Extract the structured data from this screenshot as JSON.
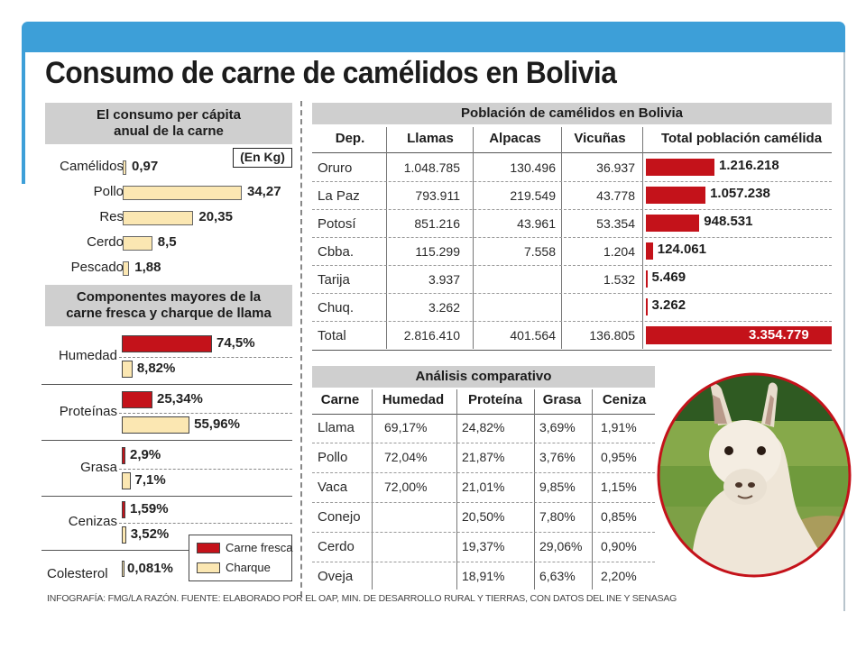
{
  "title": "Consumo de carne de camélidos en Bolivia",
  "per_capita": {
    "header_line1": "El consumo per cápita",
    "header_line2": "anual de la carne",
    "unit": "(En Kg)",
    "rows": [
      {
        "label": "Camélidos",
        "value": "0,97",
        "num": 0.97
      },
      {
        "label": "Pollo",
        "value": "34,27",
        "num": 34.27
      },
      {
        "label": "Res",
        "value": "20,35",
        "num": 20.35
      },
      {
        "label": "Cerdo",
        "value": "8,5",
        "num": 8.5
      },
      {
        "label": "Pescado",
        "value": "1,88",
        "num": 1.88
      }
    ]
  },
  "components": {
    "header_line1": "Componentes mayores de la",
    "header_line2": "carne fresca y charque de llama",
    "rows": [
      {
        "label": "Humedad",
        "fresca": "74,5%",
        "fresca_num": 74.5,
        "charque": "8,82%",
        "charque_num": 8.82
      },
      {
        "label": "Proteínas",
        "fresca": "25,34%",
        "fresca_num": 25.34,
        "charque": "55,96%",
        "charque_num": 55.96
      },
      {
        "label": "Grasa",
        "fresca": "2,9%",
        "fresca_num": 2.9,
        "charque": "7,1%",
        "charque_num": 7.1
      },
      {
        "label": "Cenizas",
        "fresca": "1,59%",
        "fresca_num": 1.59,
        "charque": "3,52%",
        "charque_num": 3.52
      },
      {
        "label": "Colesterol",
        "value": "0,081%"
      }
    ],
    "legend": {
      "fresca": "Carne fresca",
      "charque": "Charque"
    },
    "colors": {
      "fresca": "#c4121a",
      "charque": "#fbe7b2"
    }
  },
  "population": {
    "header": "Población de camélidos en Bolivia",
    "columns": [
      "Dep.",
      "Llamas",
      "Alpacas",
      "Vicuñas",
      "Total población camélida"
    ],
    "rows": [
      {
        "dep": "Oruro",
        "llamas": "1.048.785",
        "alpacas": "130.496",
        "vicunas": "36.937",
        "total": "1.216.218",
        "total_num": 1216218
      },
      {
        "dep": "La Paz",
        "llamas": "793.911",
        "alpacas": "219.549",
        "vicunas": "43.778",
        "total": "1.057.238",
        "total_num": 1057238
      },
      {
        "dep": "Potosí",
        "llamas": "851.216",
        "alpacas": "43.961",
        "vicunas": "53.354",
        "total": "948.531",
        "total_num": 948531
      },
      {
        "dep": "Cbba.",
        "llamas": "115.299",
        "alpacas": "7.558",
        "vicunas": "1.204",
        "total": "124.061",
        "total_num": 124061
      },
      {
        "dep": "Tarija",
        "llamas": "3.937",
        "alpacas": "",
        "vicunas": "1.532",
        "total": "5.469",
        "total_num": 5469
      },
      {
        "dep": "Chuq.",
        "llamas": "3.262",
        "alpacas": "",
        "vicunas": "",
        "total": "3.262",
        "total_num": 3262
      }
    ],
    "total_row": {
      "dep": "Total",
      "llamas": "2.816.410",
      "alpacas": "401.564",
      "vicunas": "136.805",
      "total": "3.354.779",
      "total_num": 3354779
    }
  },
  "comparative": {
    "header": "Análisis comparativo",
    "columns": [
      "Carne",
      "Humedad",
      "Proteína",
      "Grasa",
      "Ceniza"
    ],
    "rows": [
      [
        "Llama",
        "69,17%",
        "24,82%",
        "3,69%",
        "1,91%"
      ],
      [
        "Pollo",
        "72,04%",
        "21,87%",
        "3,76%",
        "0,95%"
      ],
      [
        "Vaca",
        "72,00%",
        "21,01%",
        "9,85%",
        "1,15%"
      ],
      [
        "Conejo",
        "",
        "20,50%",
        "7,80%",
        "0,85%"
      ],
      [
        "Cerdo",
        "",
        "19,37%",
        "29,06%",
        "0,90%"
      ],
      [
        "Oveja",
        "",
        "18,91%",
        "6,63%",
        "2,20%"
      ]
    ]
  },
  "footer": "INFOGRAFÍA: FMG/LA RAZÓN. FUENTE: ELABORADO POR EL OAP, MIN. DE DESARROLLO RURAL Y TIERRAS, CON DATOS DEL INE Y SENASAG",
  "chart_data": [
    {
      "type": "bar",
      "title": "El consumo per cápita anual de la carne",
      "ylabel": "(En Kg)",
      "categories": [
        "Camélidos",
        "Pollo",
        "Res",
        "Cerdo",
        "Pescado"
      ],
      "values": [
        0.97,
        34.27,
        20.35,
        8.5,
        1.88
      ]
    },
    {
      "type": "bar",
      "title": "Componentes mayores de la carne fresca y charque de llama",
      "categories": [
        "Humedad",
        "Proteínas",
        "Grasa",
        "Cenizas"
      ],
      "series": [
        {
          "name": "Carne fresca",
          "values": [
            74.5,
            25.34,
            2.9,
            1.59
          ]
        },
        {
          "name": "Charque",
          "values": [
            8.82,
            55.96,
            7.1,
            3.52
          ]
        }
      ]
    },
    {
      "type": "bar",
      "title": "Población de camélidos en Bolivia",
      "categories": [
        "Oruro",
        "La Paz",
        "Potosí",
        "Cbba.",
        "Tarija",
        "Chuq.",
        "Total"
      ],
      "values": [
        1216218,
        1057238,
        948531,
        124061,
        5469,
        3262,
        3354779
      ]
    },
    {
      "type": "table",
      "title": "Análisis comparativo",
      "columns": [
        "Carne",
        "Humedad",
        "Proteína",
        "Grasa",
        "Ceniza"
      ]
    }
  ]
}
